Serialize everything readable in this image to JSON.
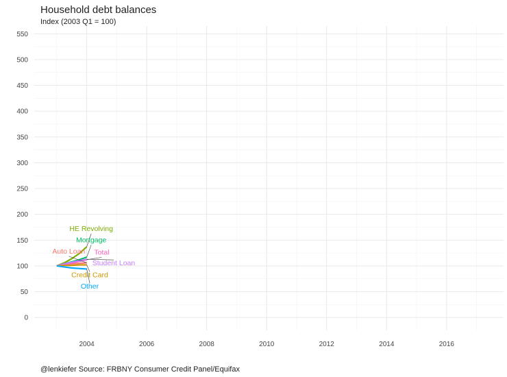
{
  "chart_data": {
    "type": "line",
    "title": "Household debt balances",
    "subtitle": "Index (2003 Q1 = 100)",
    "caption": "@lenkiefer Source: FRBNY Consumer Credit Panel/Equifax",
    "xlabel": "",
    "ylabel": "",
    "xlim": [
      2002.25,
      2017.9
    ],
    "ylim": [
      -25,
      565
    ],
    "x_ticks": [
      2004,
      2006,
      2008,
      2010,
      2012,
      2014,
      2016
    ],
    "y_ticks": [
      0,
      50,
      100,
      150,
      200,
      250,
      300,
      350,
      400,
      450,
      500,
      550
    ],
    "grid": true,
    "legend": "none (direct labels)",
    "x": [
      2003.0,
      2003.25,
      2003.5,
      2003.75,
      2004.0
    ],
    "series": [
      {
        "name": "HE Revolving",
        "color": "#7cae00",
        "values": [
          100,
          106,
          114,
          124,
          137
        ],
        "label_y": 168,
        "label_x": 2004.15
      },
      {
        "name": "Mortgage",
        "color": "#00be67",
        "values": [
          100,
          104,
          108,
          112,
          117
        ],
        "label_y": 146,
        "label_x": 2004.15
      },
      {
        "name": "Auto Loan",
        "color": "#f8766d",
        "values": [
          100,
          102,
          104,
          105,
          106
        ],
        "label_y": 124,
        "label_x": 2003.4
      },
      {
        "name": "Total",
        "color": "#ff61c3",
        "values": [
          100,
          103,
          106,
          109,
          112
        ],
        "label_y": 122,
        "label_x": 2004.5
      },
      {
        "name": "Student Loan",
        "color": "#c77cff",
        "values": [
          100,
          104,
          107,
          110,
          113
        ],
        "label_y": 101,
        "label_x": 2004.9
      },
      {
        "name": "Credit Card",
        "color": "#cd9600",
        "values": [
          100,
          101,
          101,
          102,
          102
        ],
        "label_y": 78,
        "label_x": 2004.1
      },
      {
        "name": "Other",
        "color": "#00a9ff",
        "values": [
          100,
          98,
          96,
          95,
          94
        ],
        "label_y": 56,
        "label_x": 2004.1
      }
    ]
  }
}
